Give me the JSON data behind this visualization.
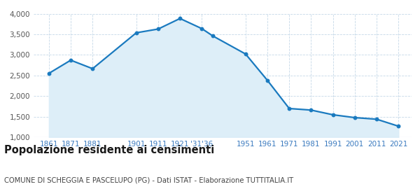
{
  "years": [
    1861,
    1871,
    1881,
    1901,
    1911,
    1921,
    1931,
    1936,
    1951,
    1961,
    1971,
    1981,
    1991,
    2001,
    2011,
    2021
  ],
  "population": [
    2551,
    2871,
    2665,
    3537,
    3628,
    3884,
    3638,
    3461,
    3022,
    2382,
    1697,
    1659,
    1545,
    1476,
    1437,
    1267
  ],
  "line_color": "#1a7abf",
  "fill_color": "#ddeef8",
  "marker_color": "#1a7abf",
  "bg_color": "#ffffff",
  "grid_color": "#c5d8e8",
  "tick_color": "#3a7abf",
  "title": "Popolazione residente ai censimenti",
  "subtitle": "COMUNE DI SCHEGGIA E PASCELUPO (PG) - Dati ISTAT - Elaborazione TUTTITALIA.IT",
  "ylim": [
    1000,
    4000
  ],
  "yticks": [
    1000,
    1500,
    2000,
    2500,
    3000,
    3500,
    4000
  ],
  "xlim_left": 1854,
  "xlim_right": 2027,
  "title_fontsize": 10.5,
  "subtitle_fontsize": 7.2,
  "tick_fontsize": 7.5
}
